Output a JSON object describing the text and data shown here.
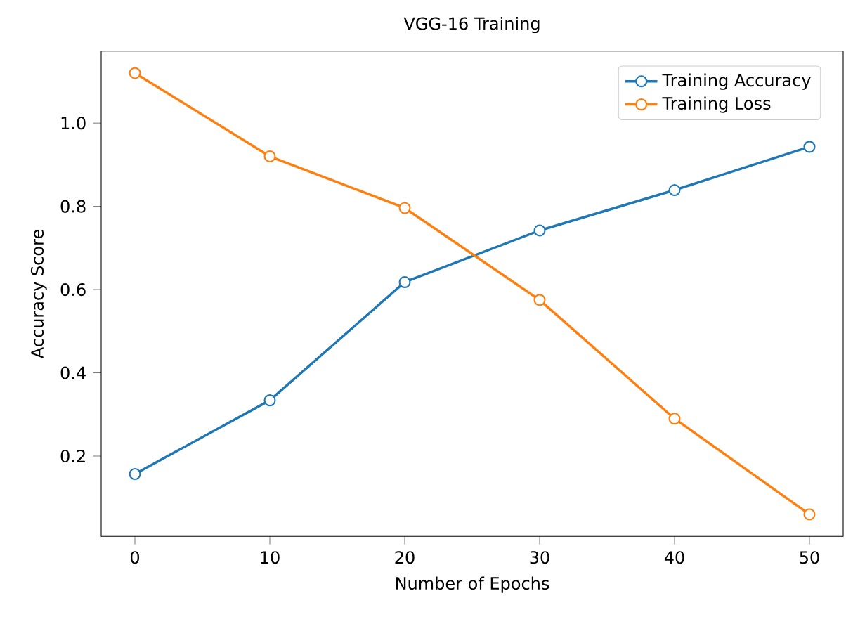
{
  "chart_data": {
    "type": "line",
    "title": "VGG-16 Training",
    "xlabel": "Number of Epochs",
    "ylabel": "Accuracy Score",
    "x": [
      0,
      10,
      20,
      30,
      40,
      50
    ],
    "series": [
      {
        "name": "Training Accuracy",
        "color": "#1f77b4",
        "values": [
          0.157,
          0.334,
          0.618,
          0.742,
          0.839,
          0.943
        ]
      },
      {
        "name": "Training Loss",
        "color": "#ff7f0e",
        "values": [
          1.12,
          0.92,
          0.796,
          0.575,
          0.29,
          0.06
        ]
      }
    ],
    "xlim": [
      -2.5,
      52.5
    ],
    "ylim": [
      0.007,
      1.173
    ],
    "xticks": [
      0,
      10,
      20,
      30,
      40,
      50
    ],
    "yticks": [
      0.2,
      0.4,
      0.6,
      0.8,
      {
        "value": 1.0,
        "label": "1.0"
      }
    ],
    "marker": "circle",
    "line_style": "solid",
    "legend": "top right",
    "grid": false
  }
}
